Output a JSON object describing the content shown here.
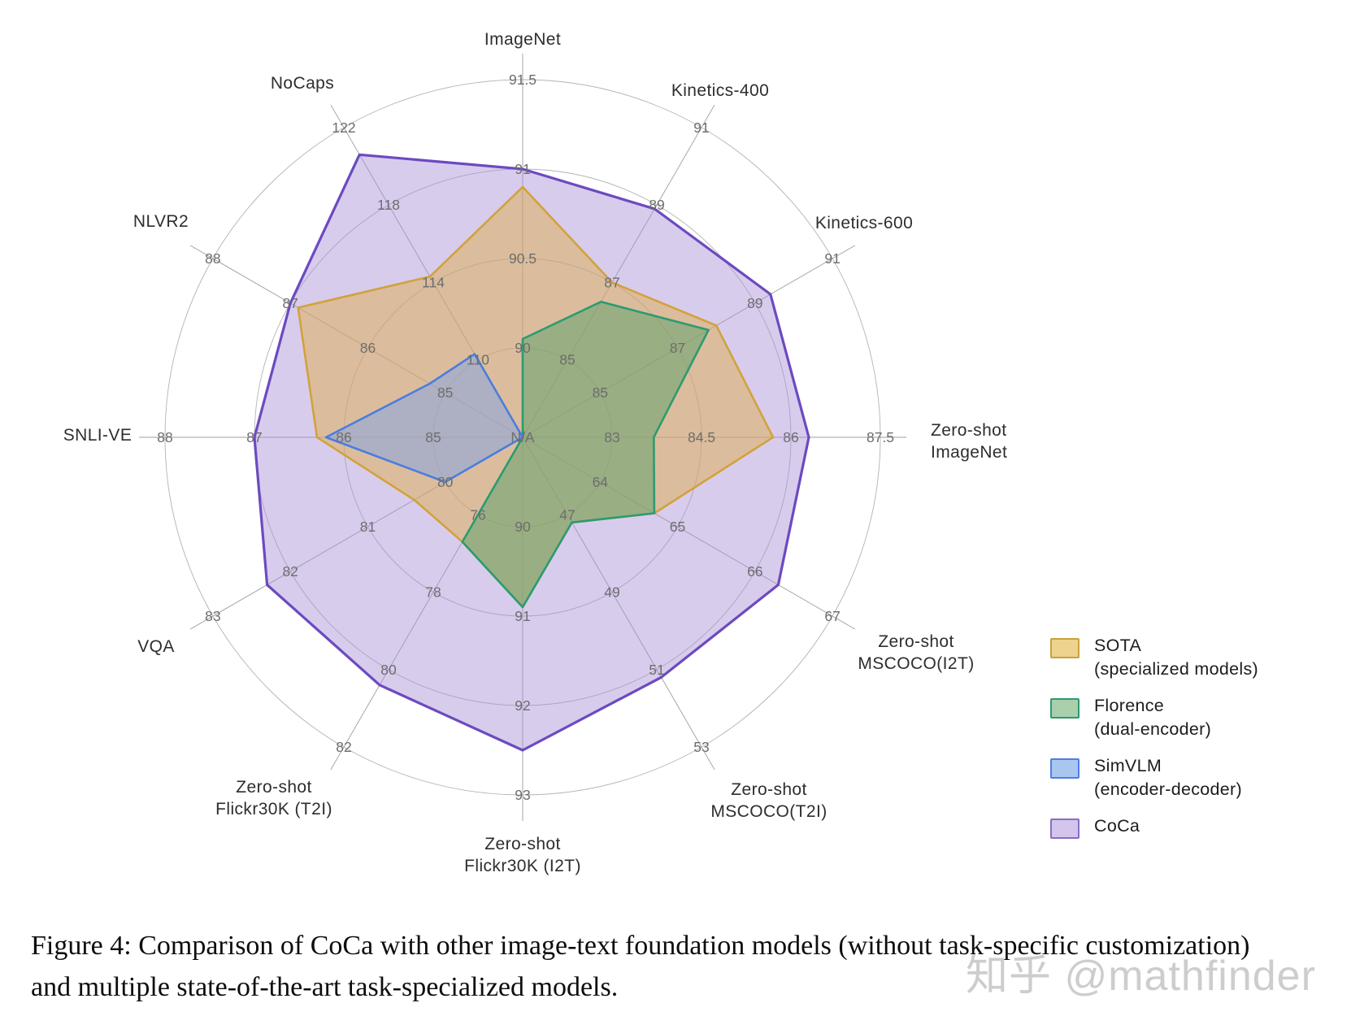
{
  "caption": "Figure 4:  Comparison of CoCa with other image-text foundation models (without task-specific customization) and multiple state-of-the-art task-specialized models.",
  "watermark": "知乎 @mathfinder",
  "center_label": "N/A",
  "legend": [
    {
      "name": "SOTA",
      "qualifier": "(specialized models)",
      "fill": "#EDD38E",
      "stroke": "#C9A23B"
    },
    {
      "name": "Florence",
      "qualifier": "(dual-encoder)",
      "fill": "#A9CFAD",
      "stroke": "#2C9B70"
    },
    {
      "name": "SimVLM",
      "qualifier": "(encoder-decoder)",
      "fill": "#A9C6EF",
      "stroke": "#4E7EE3"
    },
    {
      "name": "CoCa",
      "qualifier": "",
      "fill": "#D3C5EC",
      "stroke": "#8A6CC8"
    }
  ],
  "chart_data": {
    "type": "radar",
    "title": "",
    "grid": true,
    "rings_per_axis": 4,
    "na_label": "N/A",
    "axes": [
      {
        "label": "ImageNet",
        "lines": [
          "ImageNet"
        ],
        "ticks": [
          90,
          90.5,
          91,
          91.5
        ]
      },
      {
        "label": "Kinetics-400",
        "lines": [
          "Kinetics-400"
        ],
        "ticks": [
          85,
          87,
          89,
          91
        ]
      },
      {
        "label": "Kinetics-600",
        "lines": [
          "Kinetics-600"
        ],
        "ticks": [
          85,
          87,
          89,
          91
        ]
      },
      {
        "label": "Zero-shot ImageNet",
        "lines": [
          "Zero-shot",
          "ImageNet"
        ],
        "ticks": [
          83,
          84.5,
          86,
          87.5
        ]
      },
      {
        "label": "Zero-shot MSCOCO(I2T)",
        "lines": [
          "Zero-shot",
          "MSCOCO(I2T)"
        ],
        "ticks": [
          64,
          65,
          66,
          67
        ]
      },
      {
        "label": "Zero-shot MSCOCO(T2I)",
        "lines": [
          "Zero-shot",
          "MSCOCO(T2I)"
        ],
        "ticks": [
          47,
          49,
          51,
          53
        ]
      },
      {
        "label": "Zero-shot Flickr30K (I2T)",
        "lines": [
          "Zero-shot",
          "Flickr30K (I2T)"
        ],
        "ticks": [
          90,
          91,
          92,
          93
        ]
      },
      {
        "label": "Zero-shot Flickr30K (T2I)",
        "lines": [
          "Zero-shot",
          "Flickr30K (T2I)"
        ],
        "ticks": [
          76,
          78,
          80,
          82
        ]
      },
      {
        "label": "VQA",
        "lines": [
          "VQA"
        ],
        "ticks": [
          80,
          81,
          82,
          83
        ]
      },
      {
        "label": "SNLI-VE",
        "lines": [
          "SNLI-VE"
        ],
        "ticks": [
          85,
          86,
          87,
          88
        ]
      },
      {
        "label": "NLVR2",
        "lines": [
          "NLVR2"
        ],
        "ticks": [
          85,
          86,
          87,
          88
        ]
      },
      {
        "label": "NoCaps",
        "lines": [
          "NoCaps"
        ],
        "ticks": [
          110,
          114,
          118,
          122
        ]
      }
    ],
    "series": [
      {
        "name": "SOTA (specialized models)",
        "stroke": "#D2A23B",
        "fill": "#DDAE4E",
        "fill_opacity": 0.5,
        "stroke_width": 2.6,
        "values": [
          90.9,
          87.0,
          88.0,
          85.7,
          64.7,
          47.2,
          90.9,
          76.7,
          80.4,
          86.3,
          86.9,
          114.3
        ]
      },
      {
        "name": "Florence (dual-encoder)",
        "stroke": "#2C9B70",
        "fill": "#59A06B",
        "fill_opacity": 0.5,
        "stroke_width": 2.6,
        "values": [
          90.05,
          86.5,
          87.8,
          83.7,
          64.7,
          47.2,
          90.9,
          76.7,
          null,
          null,
          null,
          null
        ]
      },
      {
        "name": "SimVLM (encoder-decoder)",
        "stroke": "#4B7CE0",
        "fill": "#7FA3E8",
        "fill_opacity": 0.5,
        "stroke_width": 2.6,
        "values": [
          null,
          null,
          null,
          null,
          null,
          null,
          null,
          null,
          80.0,
          86.2,
          85.2,
          110.3
        ]
      },
      {
        "name": "CoCa",
        "stroke": "#6C4AC0",
        "fill": "#A88FD8",
        "fill_opacity": 0.45,
        "stroke_width": 3.2,
        "values": [
          91.0,
          88.9,
          89.4,
          86.3,
          66.3,
          51.2,
          92.5,
          80.4,
          82.3,
          87.0,
          87.0,
          120.6
        ]
      }
    ]
  }
}
